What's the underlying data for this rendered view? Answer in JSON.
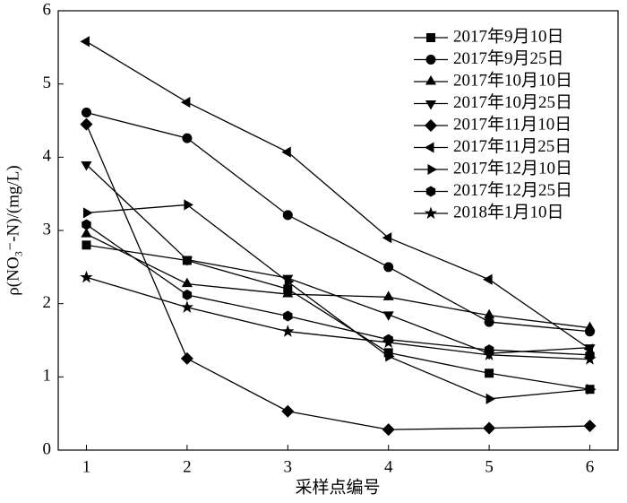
{
  "chart_data": {
    "type": "line",
    "xlabel": "采样点编号",
    "ylabel": "ρ(NO₃⁻-N)/(mg/L)",
    "x": [
      1,
      2,
      3,
      4,
      5,
      6
    ],
    "xlim": [
      0.72,
      6.28
    ],
    "xticks": [
      1,
      2,
      3,
      4,
      5,
      6
    ],
    "ylim": [
      0,
      6
    ],
    "yticks": [
      0,
      1,
      2,
      3,
      4,
      5,
      6
    ],
    "legend": "upper right",
    "series": [
      {
        "name": "2017年9月10日",
        "color": "#000000",
        "marker": "square",
        "values": [
          2.8,
          2.59,
          2.2,
          1.33,
          1.05,
          0.83
        ]
      },
      {
        "name": "2017年9月25日",
        "color": "#000000",
        "marker": "circle",
        "values": [
          4.61,
          4.26,
          3.21,
          2.5,
          1.75,
          1.62
        ]
      },
      {
        "name": "2017年10月10日",
        "color": "#000000",
        "marker": "triangle-up",
        "values": [
          2.95,
          2.27,
          2.13,
          2.09,
          1.84,
          1.67
        ]
      },
      {
        "name": "2017年10月25日",
        "color": "#000000",
        "marker": "triangle-down",
        "values": [
          3.9,
          2.6,
          2.35,
          1.85,
          1.32,
          1.4
        ]
      },
      {
        "name": "2017年11月10日",
        "color": "#000000",
        "marker": "diamond",
        "values": [
          4.45,
          1.25,
          0.53,
          0.28,
          0.3,
          0.33
        ]
      },
      {
        "name": "2017年11月25日",
        "color": "#000000",
        "marker": "triangle-left",
        "values": [
          5.58,
          4.75,
          4.07,
          2.9,
          2.33,
          1.38
        ]
      },
      {
        "name": "2017年12月10日",
        "color": "#000000",
        "marker": "triangle-right",
        "values": [
          3.24,
          3.35,
          2.3,
          1.28,
          0.7,
          0.83
        ]
      },
      {
        "name": "2017年12月25日",
        "color": "#000000",
        "marker": "hexagon",
        "values": [
          3.08,
          2.12,
          1.83,
          1.51,
          1.37,
          1.3
        ]
      },
      {
        "name": "2018年1月10日",
        "color": "#000000",
        "marker": "star",
        "values": [
          2.36,
          1.95,
          1.62,
          1.47,
          1.3,
          1.24
        ]
      }
    ]
  }
}
